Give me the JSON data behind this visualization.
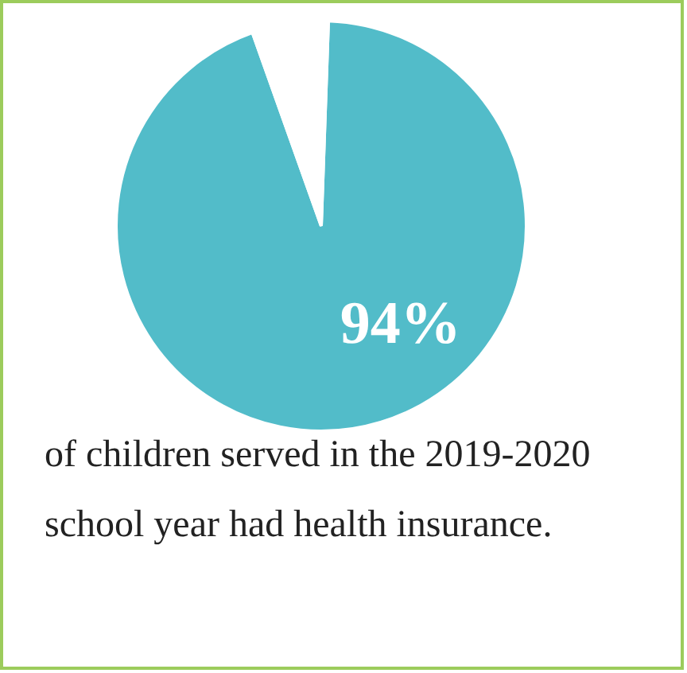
{
  "chart_data": {
    "type": "pie",
    "categories": [
      null,
      null
    ],
    "values": [
      94,
      6
    ],
    "colors": [
      "#52bcc9",
      "#ffffff"
    ],
    "value_labels": [
      "94%",
      null
    ],
    "annotations": [
      "of children served in the 2019-2020 school year had health insurance."
    ]
  }
}
